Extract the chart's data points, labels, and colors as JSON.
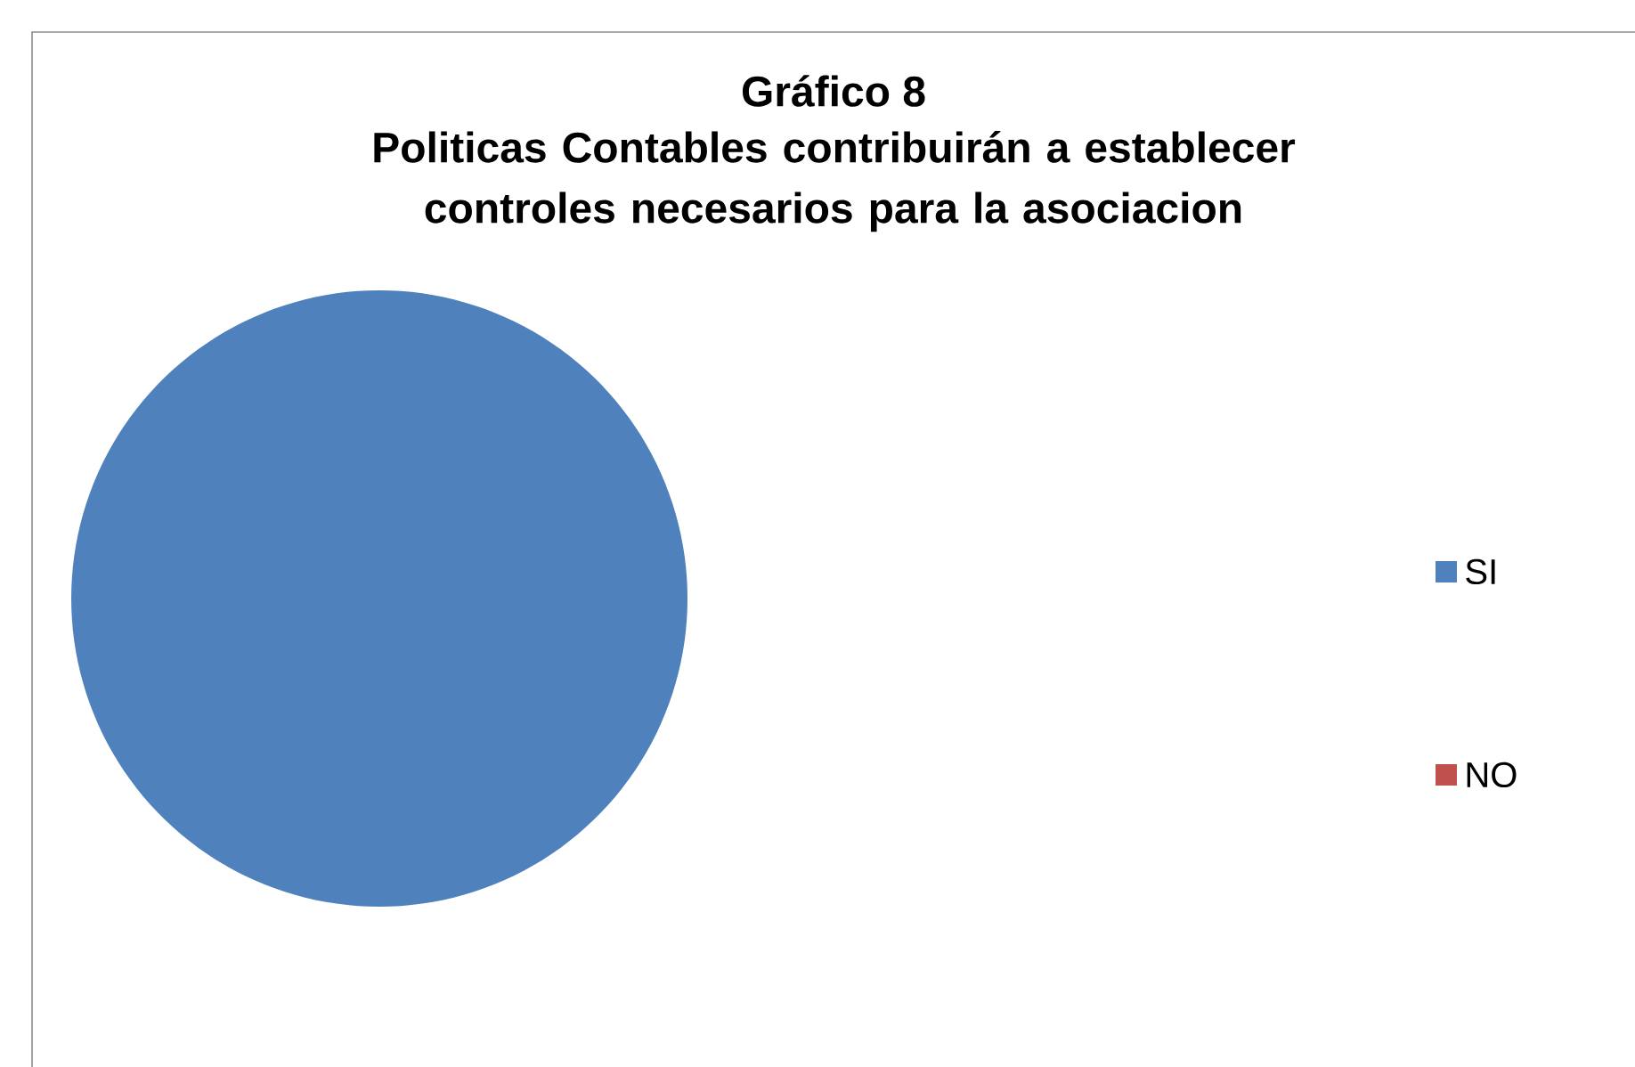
{
  "chart_data": {
    "type": "pie",
    "title": "Gráfico  8",
    "subtitle": "Politicas Contables contribuirán a establecer controles necesarios para la asociacion",
    "categories": [
      "SI",
      "NO"
    ],
    "values": [
      100,
      0
    ],
    "colors": [
      "#4f81bd",
      "#c0504d"
    ],
    "legend": "right"
  }
}
